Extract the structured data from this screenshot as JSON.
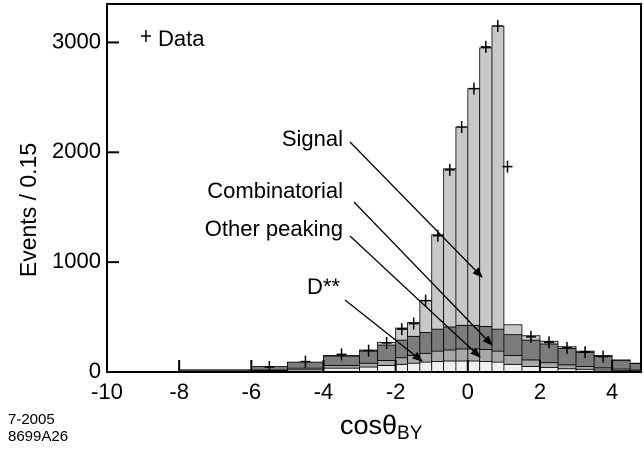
{
  "chart_data": {
    "type": "stacked-histogram",
    "x_label": "cosθ",
    "x_label_sub": "BY",
    "y_label": "Events / 0.15",
    "bins": [
      -10,
      -8,
      -6,
      -5,
      -4,
      -3,
      -2.5,
      -2,
      -1.67,
      -1.33,
      -1,
      -0.67,
      -0.33,
      0,
      0.33,
      0.67,
      1,
      1.5,
      2,
      2.5,
      3,
      3.5,
      4,
      4.5,
      4.8
    ],
    "series": [
      {
        "name": "D**",
        "color": "#f0f0f0",
        "values": [
          2,
          5,
          10,
          20,
          35,
          45,
          60,
          70,
          80,
          90,
          95,
          100,
          100,
          100,
          95,
          90,
          70,
          50,
          40,
          30,
          25,
          18,
          12,
          8
        ]
      },
      {
        "name": "Other peaking",
        "color": "#a8a8a8",
        "values": [
          1,
          3,
          8,
          15,
          25,
          35,
          45,
          60,
          70,
          80,
          95,
          100,
          110,
          110,
          110,
          100,
          80,
          60,
          45,
          35,
          25,
          20,
          15,
          10
        ]
      },
      {
        "name": "Combinatorial",
        "color": "#7c7c7c",
        "values": [
          2,
          12,
          32,
          55,
          85,
          110,
          140,
          160,
          175,
          190,
          200,
          210,
          215,
          215,
          210,
          200,
          190,
          180,
          170,
          150,
          130,
          105,
          80,
          60
        ]
      },
      {
        "name": "Signal",
        "color": "#c8c8c8",
        "values": [
          0,
          0,
          0,
          0,
          5,
          10,
          25,
          110,
          125,
          290,
          860,
          1440,
          1805,
          2155,
          2535,
          2760,
          90,
          40,
          25,
          15,
          10,
          7,
          3,
          2
        ]
      }
    ],
    "data_points": {
      "name": "Data",
      "x": [
        -5.5,
        -4.5,
        -3.5,
        -2.75,
        -2.25,
        -1.83,
        -1.5,
        -1.17,
        -0.83,
        -0.5,
        -0.17,
        0.17,
        0.5,
        0.83,
        1.1,
        1.75,
        2.25,
        2.75,
        3.25,
        3.75
      ],
      "y": [
        45,
        95,
        160,
        195,
        265,
        390,
        440,
        650,
        1240,
        1840,
        2230,
        2580,
        2960,
        3150,
        1870,
        320,
        270,
        220,
        180,
        140
      ]
    },
    "annotations": [
      "Signal",
      "Combinatorial",
      "Other peaking",
      "D**"
    ],
    "xlim": [
      -10,
      4.8
    ],
    "ylim": [
      0,
      3350
    ],
    "xticks": [
      -10,
      -8,
      -6,
      -4,
      -2,
      0,
      2,
      4
    ],
    "yticks": [
      0,
      1000,
      2000,
      3000
    ],
    "footnote": [
      "7-2005",
      "8699A26"
    ]
  }
}
